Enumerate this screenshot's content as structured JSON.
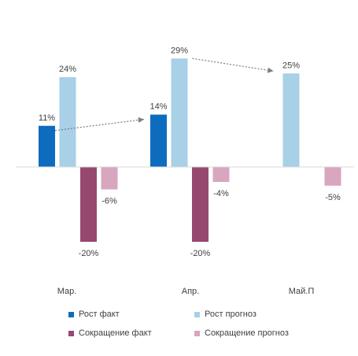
{
  "chart_data": {
    "type": "bar",
    "categories": [
      "Мар.",
      "Апр.",
      "Май.П"
    ],
    "series": [
      {
        "name": "Рост факт",
        "values": [
          11,
          14,
          null
        ],
        "labels": [
          "11%",
          "14%",
          ""
        ],
        "color": "#0E6CBF"
      },
      {
        "name": "Рост прогноз",
        "values": [
          24,
          29,
          25
        ],
        "labels": [
          "24%",
          "29%",
          "25%"
        ],
        "color": "#A8D0E6"
      },
      {
        "name": "Сокращение факт",
        "values": [
          -20,
          -20,
          null
        ],
        "labels": [
          "-20%",
          "-20%",
          ""
        ],
        "color": "#97486F"
      },
      {
        "name": "Сокращение прогноз",
        "values": [
          -6,
          -4,
          -5
        ],
        "labels": [
          "-6%",
          "-4%",
          "-5%"
        ],
        "color": "#D8A6BF"
      }
    ],
    "ylim": [
      -23,
      33
    ],
    "grid": false,
    "legend_position": "bottom",
    "annotations": [
      "dotted-arrow Мар. Рост факт to Апр. Рост факт",
      "dotted-arrow Апр. Рост прогноз to Май.П Рост прогноз"
    ]
  }
}
